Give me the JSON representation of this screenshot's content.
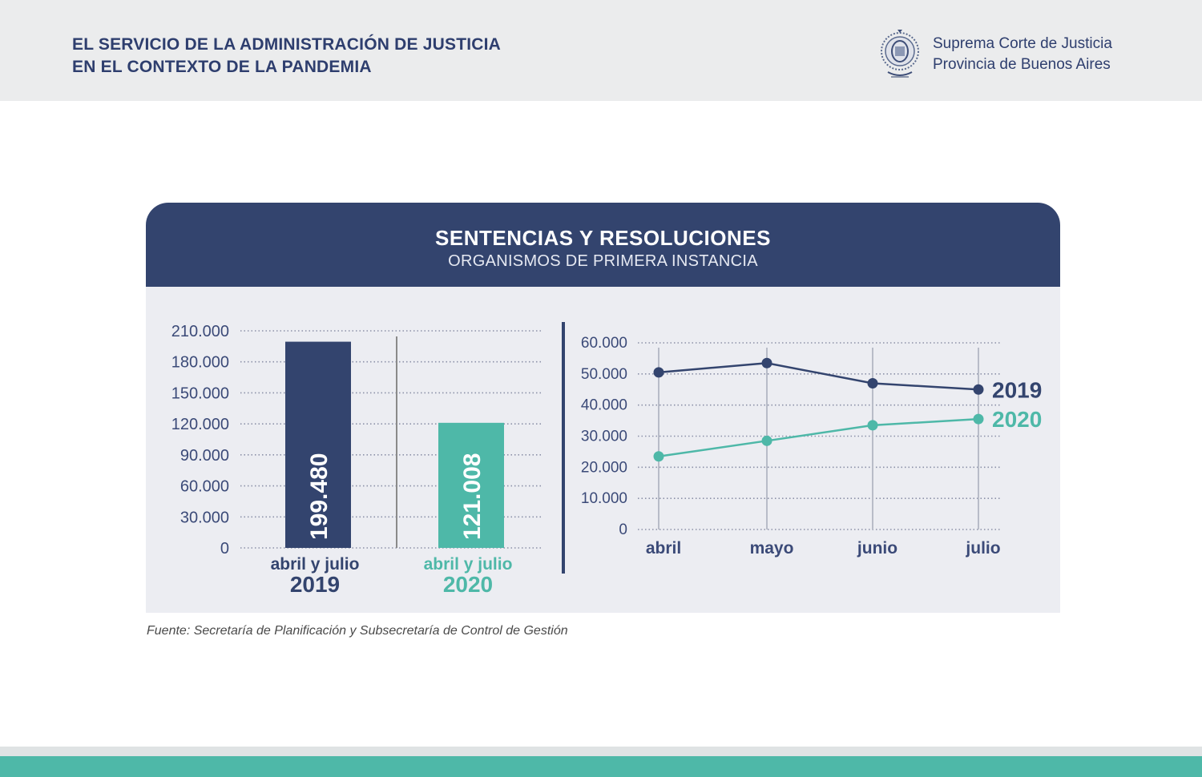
{
  "header": {
    "title_line1": "EL SERVICIO DE LA ADMINISTRACIÓN DE JUSTICIA",
    "title_line2": "EN EL CONTEXTO DE LA PANDEMIA",
    "org_line1": "Suprema Corte de Justicia",
    "org_line2": "Provincia de Buenos Aires",
    "seal_icon": "court-seal-icon"
  },
  "card": {
    "title": "SENTENCIAS Y RESOLUCIONES",
    "subtitle": "ORGANISMOS DE PRIMERA INSTANCIA"
  },
  "source": "Fuente: Secretaría de Planificación y Subsecretaría de Control de Gestión",
  "colors": {
    "navy": "#33446e",
    "teal": "#4eb8a8",
    "panel": "#ecedf2",
    "axis_text": "#3b4a78"
  },
  "chart_data": [
    {
      "type": "bar",
      "categories": [
        "2019",
        "2020"
      ],
      "category_captions": [
        "abril y julio",
        "abril y julio"
      ],
      "values": [
        199480,
        121008
      ],
      "value_labels": [
        "199.480",
        "121.008"
      ],
      "ylim": [
        0,
        210000
      ],
      "yticks": [
        0,
        30000,
        60000,
        90000,
        120000,
        150000,
        180000,
        210000
      ],
      "ytick_labels": [
        "0",
        "30.000",
        "60.000",
        "90.000",
        "120.000",
        "150.000",
        "180.000",
        "210.000"
      ],
      "bar_colors": [
        "#33446e",
        "#4eb8a8"
      ],
      "grid": true
    },
    {
      "type": "line",
      "categories": [
        "abril",
        "mayo",
        "junio",
        "julio"
      ],
      "series": [
        {
          "name": "2019",
          "values": [
            50500,
            53500,
            47000,
            45000
          ],
          "color": "#33446e"
        },
        {
          "name": "2020",
          "values": [
            23500,
            28500,
            33500,
            35500
          ],
          "color": "#4eb8a8"
        }
      ],
      "ylim": [
        0,
        60000
      ],
      "yticks": [
        0,
        10000,
        20000,
        30000,
        40000,
        50000,
        60000
      ],
      "ytick_labels": [
        "0",
        "10.000",
        "20.000",
        "30.000",
        "40.000",
        "50.000",
        "60.000"
      ],
      "legend": "right",
      "grid": true
    }
  ]
}
